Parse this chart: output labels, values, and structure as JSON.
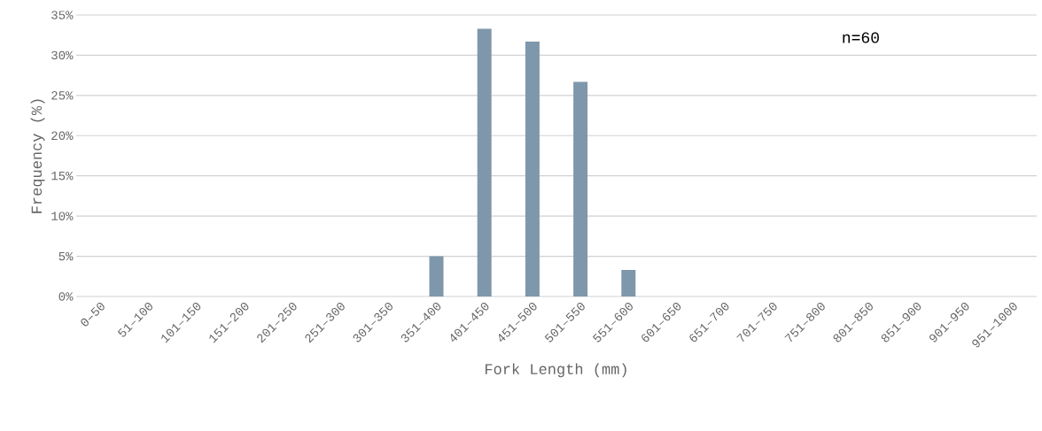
{
  "chart_data": {
    "type": "bar",
    "xlabel": "Fork Length (mm)",
    "ylabel": "Frequency (%)",
    "categories": [
      "0–50",
      "51–100",
      "101–150",
      "151–200",
      "201–250",
      "251–300",
      "301–350",
      "351–400",
      "401–450",
      "451–500",
      "501–550",
      "551–600",
      "601–650",
      "651–700",
      "701–750",
      "751–800",
      "801–850",
      "851–900",
      "901–950",
      "951–1000"
    ],
    "values": [
      0,
      0,
      0,
      0,
      0,
      0,
      0,
      5,
      33.3,
      31.7,
      26.7,
      3.3,
      0,
      0,
      0,
      0,
      0,
      0,
      0,
      0
    ],
    "color": "#7f97ab",
    "ylim": [
      0,
      35
    ],
    "yticks": [
      {
        "value": 0,
        "label": "0%"
      },
      {
        "value": 5,
        "label": "5%"
      },
      {
        "value": 10,
        "label": "10%"
      },
      {
        "value": 15,
        "label": "15%"
      },
      {
        "value": 20,
        "label": "20%"
      },
      {
        "value": 25,
        "label": "25%"
      },
      {
        "value": 30,
        "label": "30%"
      },
      {
        "value": 35,
        "label": "35%"
      }
    ],
    "grid": "y",
    "annotations": [
      "n=60"
    ]
  }
}
